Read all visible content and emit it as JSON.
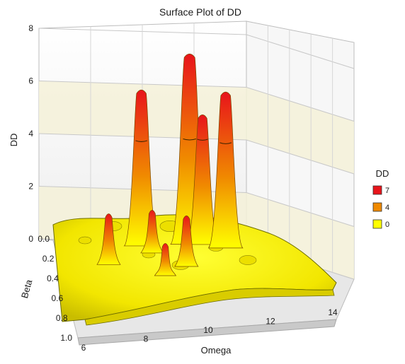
{
  "chart_data": {
    "type": "surface",
    "title": "Surface Plot of DD",
    "xlabel": "Omega",
    "ylabel": "Beta",
    "zlabel": "DD",
    "xlim": [
      6,
      14
    ],
    "ylim": [
      0.0,
      1.0
    ],
    "zlim": [
      0,
      8
    ],
    "x_ticks": [
      "6",
      "8",
      "10",
      "12",
      "14"
    ],
    "y_ticks": [
      "0.0",
      "0.2",
      "0.4",
      "0.6",
      "0.8",
      "1.0"
    ],
    "z_ticks": [
      "0",
      "2",
      "4",
      "6",
      "8"
    ],
    "legend": {
      "title": "DD",
      "position": "right",
      "entries": [
        {
          "label": "7",
          "color": "#e8141b"
        },
        {
          "label": "4",
          "color": "#f08a00"
        },
        {
          "label": "0",
          "color": "#ffff00"
        }
      ]
    },
    "peaks": [
      {
        "omega": 8.7,
        "beta": 0.05,
        "dd": 5.9
      },
      {
        "omega": 10.2,
        "beta": 0.02,
        "dd": 7.2
      },
      {
        "omega": 10.6,
        "beta": 0.02,
        "dd": 4.9
      },
      {
        "omega": 11.3,
        "beta": 0.05,
        "dd": 5.9
      },
      {
        "omega": 9.0,
        "beta": 0.12,
        "dd": 1.6
      },
      {
        "omega": 7.6,
        "beta": 0.25,
        "dd": 1.9
      },
      {
        "omega": 10.0,
        "beta": 0.25,
        "dd": 1.9
      },
      {
        "omega": 9.3,
        "beta": 0.35,
        "dd": 1.2
      }
    ],
    "grid": true
  }
}
